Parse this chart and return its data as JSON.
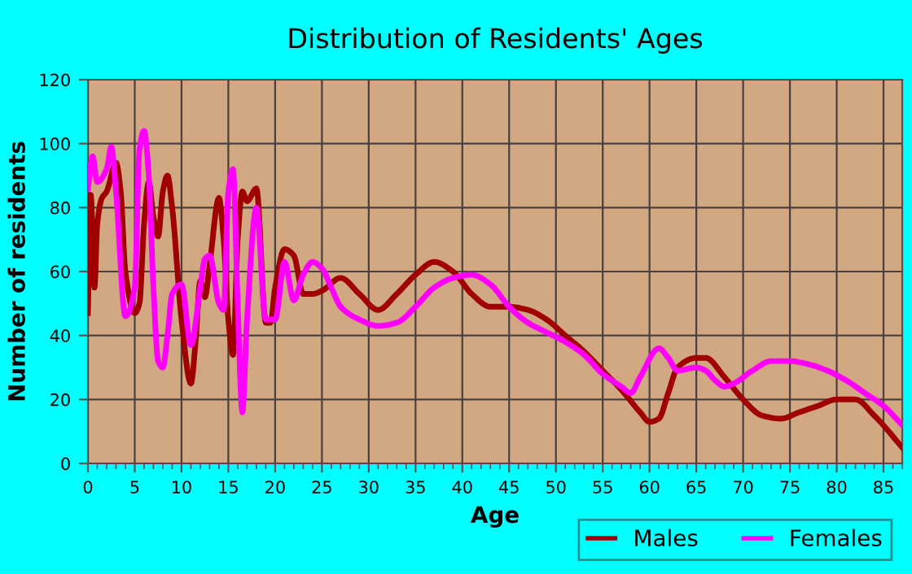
{
  "chart_data": {
    "type": "line",
    "title": "Distribution of Residents' Ages",
    "xlabel": "Age",
    "ylabel": "Number of residents",
    "xlim": [
      0,
      87
    ],
    "xticks": [
      0,
      5,
      10,
      15,
      20,
      25,
      30,
      35,
      40,
      45,
      50,
      55,
      60,
      65,
      70,
      75,
      80,
      85
    ],
    "ylim": [
      0,
      120
    ],
    "yticks": [
      0,
      20,
      40,
      60,
      80,
      100,
      120
    ],
    "grid": true,
    "legend": "bottom right",
    "marker": "none",
    "line_style": "solid",
    "series": [
      {
        "name": "Males",
        "color": "#a00000",
        "x": [
          0,
          0.3,
          0.7,
          1,
          1.5,
          2,
          3,
          3.5,
          4,
          5,
          5.5,
          6,
          6.5,
          7,
          7.5,
          8,
          8.5,
          9,
          10,
          11,
          11.5,
          12,
          12.5,
          13,
          14,
          14.5,
          15,
          15.5,
          16,
          16.5,
          17,
          18,
          19,
          19.5,
          20,
          21,
          22,
          23,
          24,
          25,
          27,
          29,
          31,
          33,
          35,
          37,
          39,
          41,
          43,
          45,
          47,
          49,
          51,
          53,
          55,
          57,
          59,
          60,
          61,
          62,
          63,
          65,
          66,
          68,
          70,
          72,
          74,
          76,
          78,
          80,
          82,
          84,
          87
        ],
        "values": [
          47,
          84,
          55,
          75,
          83,
          85,
          94,
          85,
          60,
          47,
          50,
          75,
          88,
          77,
          71,
          85,
          90,
          80,
          45,
          25,
          38,
          57,
          52,
          62,
          83,
          70,
          45,
          34,
          70,
          85,
          82,
          86,
          44,
          44,
          55,
          67,
          65,
          53,
          53,
          54,
          58,
          53,
          48,
          53,
          59,
          63,
          60,
          53,
          49,
          49,
          48,
          45,
          40,
          35,
          29,
          23,
          16,
          13,
          14,
          22,
          30,
          33,
          33,
          27,
          20,
          15,
          14,
          16,
          18,
          20,
          20,
          15,
          5
        ]
      },
      {
        "name": "Females",
        "color": "#ff00ff",
        "x": [
          0,
          0.5,
          1,
          2,
          2.5,
          3,
          4,
          5,
          5.5,
          6,
          6.5,
          7,
          7.5,
          8,
          8.5,
          9,
          10,
          11,
          12,
          12.5,
          13,
          14,
          14.5,
          15,
          15.5,
          16,
          16.5,
          17,
          18,
          19,
          20,
          21,
          22,
          23,
          24,
          25,
          26,
          27,
          29,
          31,
          33,
          35,
          37,
          39,
          41,
          43,
          45,
          47,
          49,
          51,
          53,
          55,
          57,
          58,
          59,
          61,
          62,
          63,
          65,
          66,
          67,
          68,
          69,
          71,
          73,
          75,
          77,
          79,
          81,
          83,
          85,
          87
        ],
        "values": [
          86,
          96,
          88,
          92,
          99,
          85,
          46,
          55,
          98,
          104,
          90,
          55,
          32,
          30,
          40,
          53,
          56,
          37,
          55,
          64,
          65,
          50,
          48,
          85,
          92,
          50,
          16,
          45,
          80,
          45,
          45,
          63,
          51,
          59,
          63,
          61,
          55,
          49,
          45,
          43,
          44,
          49,
          55,
          58,
          59,
          56,
          49,
          44,
          41,
          38,
          34,
          28,
          24,
          22,
          27,
          36,
          33,
          29,
          30,
          29,
          26,
          24,
          25,
          29,
          32,
          32,
          31,
          29,
          26,
          22,
          18,
          12
        ]
      }
    ]
  }
}
